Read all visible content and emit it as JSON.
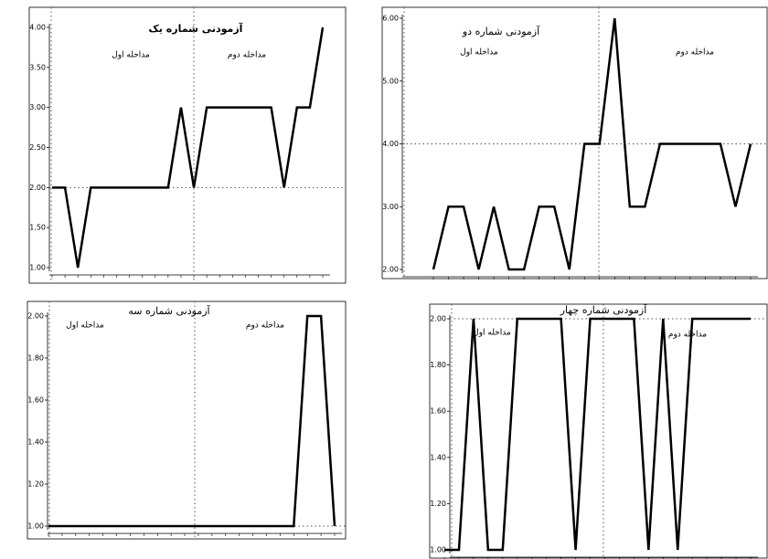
{
  "chart_data": [
    {
      "type": "line",
      "title": "آزمودنی شماره یک",
      "annotations": [
        "مداخله اول",
        "مداخله دوم"
      ],
      "categories": [
        null,
        null,
        null,
        null,
        null,
        null,
        null,
        null,
        null,
        null,
        null,
        null,
        null,
        null,
        null,
        null,
        null,
        null,
        null,
        null,
        null,
        null
      ],
      "values": [
        2,
        2,
        1,
        2,
        2,
        2,
        2,
        2,
        2,
        2,
        3,
        2,
        3,
        3,
        3,
        3,
        3,
        3,
        2,
        3,
        3,
        4
      ],
      "color": "#000000",
      "ylim": [
        1,
        4
      ],
      "yticks": [
        {
          "value": 1,
          "label": "1.00"
        },
        {
          "value": 1.5,
          "label": "1.50"
        },
        {
          "value": 2,
          "label": "2.00"
        },
        {
          "value": 2.5,
          "label": "2.50"
        },
        {
          "value": 3,
          "label": "3.00"
        },
        {
          "value": 3.5,
          "label": "3.50"
        },
        {
          "value": 4,
          "label": "4.00"
        }
      ],
      "reference_line": 2
    },
    {
      "type": "line",
      "title": "آزمودنی شماره دو",
      "annotations": [
        "مداخله اول",
        "مداخله دوم"
      ],
      "categories": [
        null,
        null,
        null,
        null,
        null,
        null,
        null,
        null,
        null,
        null,
        null,
        null,
        null,
        null,
        null,
        null,
        null,
        null,
        null,
        null,
        null,
        null
      ],
      "values": [
        2,
        3,
        3,
        2,
        3,
        2,
        2,
        3,
        3,
        2,
        4,
        4,
        6,
        3,
        3,
        4,
        4,
        4,
        4,
        4,
        3,
        4
      ],
      "color": "#000000",
      "ylim": [
        2,
        6
      ],
      "yticks": [
        {
          "value": 2,
          "label": "2.00"
        },
        {
          "value": 3,
          "label": "3.00"
        },
        {
          "value": 4,
          "label": "4.00"
        },
        {
          "value": 5,
          "label": "5.00"
        },
        {
          "value": 6,
          "label": "6.00"
        }
      ],
      "reference_line": 4
    },
    {
      "type": "line",
      "title": "آزمودنی شماره سه",
      "annotations": [
        "مداخله اول",
        "مداخله دوم"
      ],
      "categories": [
        null,
        null,
        null,
        null,
        null,
        null,
        null,
        null,
        null,
        null,
        null,
        null,
        null,
        null,
        null,
        null,
        null,
        null,
        null,
        null,
        null,
        null
      ],
      "values": [
        1,
        1,
        1,
        1,
        1,
        1,
        1,
        1,
        1,
        1,
        1,
        1,
        1,
        1,
        1,
        1,
        1,
        1,
        1,
        2,
        2,
        1
      ],
      "color": "#000000",
      "ylim": [
        1,
        2
      ],
      "yticks": [
        {
          "value": 1,
          "label": "1.00"
        },
        {
          "value": 1.2,
          "label": "1.20"
        },
        {
          "value": 1.4,
          "label": "1.40"
        },
        {
          "value": 1.6,
          "label": "1.60"
        },
        {
          "value": 1.8,
          "label": "1.80"
        },
        {
          "value": 2,
          "label": "2.00"
        }
      ],
      "reference_line": 1
    },
    {
      "type": "line",
      "title": "آزمودنی شماره چهار",
      "annotations": [
        "مداخله اول",
        "مداخله دوم"
      ],
      "categories": [
        null,
        null,
        null,
        null,
        null,
        null,
        null,
        null,
        null,
        null,
        null,
        null,
        null,
        null,
        null,
        null,
        null,
        null,
        null,
        null,
        null,
        null
      ],
      "values": [
        1,
        1,
        2,
        1,
        1,
        2,
        2,
        2,
        2,
        1,
        2,
        2,
        2,
        2,
        1,
        2,
        1,
        2,
        2,
        2,
        2,
        2
      ],
      "color": "#000000",
      "ylim": [
        1,
        2
      ],
      "yticks": [
        {
          "value": 1,
          "label": "1.00"
        },
        {
          "value": 1.2,
          "label": "1.20"
        },
        {
          "value": 1.4,
          "label": "1.40"
        },
        {
          "value": 1.6,
          "label": "1.60"
        },
        {
          "value": 1.8,
          "label": "1.80"
        },
        {
          "value": 2,
          "label": "2.00"
        }
      ],
      "reference_line": 2
    }
  ]
}
